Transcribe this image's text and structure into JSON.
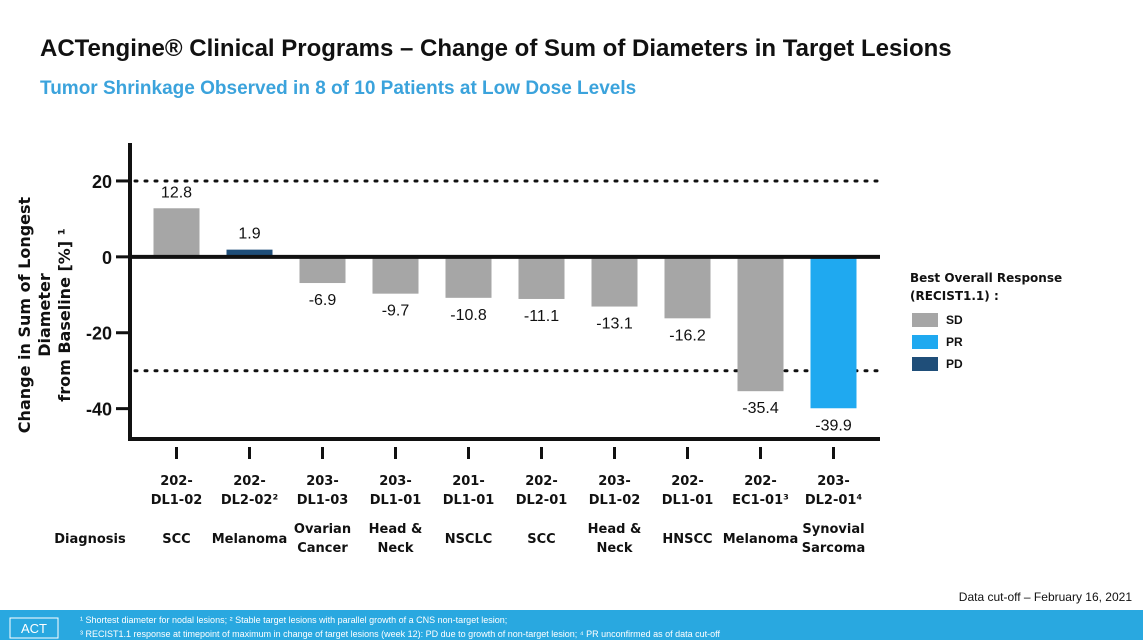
{
  "chart_data": {
    "type": "bar",
    "title": "ACTengine® Clinical Programs – Change of Sum of Diameters in Target Lesions",
    "subtitle": "Tumor Shrinkage Observed in 8 of 10 Patients at Low Dose Levels",
    "y_label": "Change in Sum of Longest Diameter\nfrom Baseline [%] ¹",
    "categories": [
      "202-\nDL1-02",
      "202-\nDL2-02²",
      "203-\nDL1-03",
      "203-\nDL1-01",
      "201-\nDL1-01",
      "202-\nDL2-01",
      "203-\nDL1-02",
      "202-\nDL1-01",
      "202-\nEC1-01³",
      "203-\nDL2-01⁴"
    ],
    "row_label": "Diagnosis",
    "diagnoses": [
      "SCC",
      "Melanoma",
      "Ovarian\nCancer",
      "Head &\nNeck",
      "NSCLC",
      "SCC",
      "Head &\nNeck",
      "HNSCC",
      "Melanoma",
      "Synovial\nSarcoma"
    ],
    "values": [
      12.8,
      1.9,
      -6.9,
      -9.7,
      -10.8,
      -11.1,
      -13.1,
      -16.2,
      -35.4,
      -39.9
    ],
    "colors": [
      "#a6a6a6",
      "#1f4e79",
      "#a6a6a6",
      "#a6a6a6",
      "#a6a6a6",
      "#a6a6a6",
      "#a6a6a6",
      "#a6a6a6",
      "#a6a6a6",
      "#1fa9f0"
    ],
    "ylim": [
      -48,
      30
    ],
    "yticks": [
      20,
      0,
      -20,
      -40
    ],
    "reference_lines": [
      20,
      -30
    ],
    "legend": {
      "title": "Best Overall Response\n(RECIST1.1) :",
      "items": [
        {
          "name": "SD",
          "color": "#a6a6a6"
        },
        {
          "name": "PR",
          "color": "#1fa9f0"
        },
        {
          "name": "PD",
          "color": "#1f4e79"
        }
      ]
    },
    "note": "Data cut-off – February 16, 2021",
    "footer_logo": "ACT",
    "footnotes": [
      "¹ Shortest diameter for nodal lesions; ² Stable target lesions with parallel growth of a CNS non-target lesion;",
      "³ RECIST1.1 response at timepoint of maximum in change of target lesions (week 12): PD due to growth of non-target lesion; ⁴ PR unconfirmed as of data cut-off"
    ]
  }
}
